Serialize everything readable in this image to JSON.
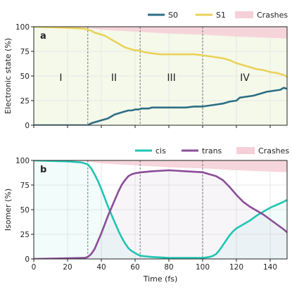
{
  "colors": {
    "S0": "#2d6e85",
    "S1": "#e9d25a",
    "cis": "#20c5b3",
    "trans": "#8a4d98",
    "crash_fill": "#f5d0d8",
    "axis": "#222222"
  },
  "chart_data": [
    {
      "type": "line",
      "panel": "a",
      "ylabel": "Electronic state (%)",
      "xlim": [
        0,
        150
      ],
      "ylim": [
        0,
        100
      ],
      "xticks": [
        "",
        "",
        "",
        "",
        "",
        "",
        "",
        ""
      ],
      "yticks": [
        "0",
        "25",
        "50",
        "75",
        "100"
      ],
      "grid": true,
      "legend_position": "top-right",
      "legend": [
        {
          "key": "S0",
          "label": "S0",
          "kind": "line"
        },
        {
          "key": "S1",
          "label": "S1",
          "kind": "line"
        },
        {
          "key": "crashes",
          "label": "Crashes",
          "kind": "area"
        }
      ],
      "regions": [
        {
          "label": "I",
          "x0": 0,
          "x1": 32
        },
        {
          "label": "II",
          "x0": 32,
          "x1": 63
        },
        {
          "label": "III",
          "x0": 63,
          "x1": 100
        },
        {
          "label": "IV",
          "x0": 100,
          "x1": 150
        }
      ],
      "vlines": [
        32,
        63,
        100
      ],
      "series": [
        {
          "name": "S0",
          "x": [
            0,
            31,
            32,
            33,
            34,
            36,
            38,
            40,
            42,
            44,
            46,
            48,
            50,
            52,
            54,
            56,
            58,
            60,
            62,
            64,
            66,
            68,
            70,
            75,
            80,
            85,
            90,
            95,
            100,
            104,
            108,
            112,
            116,
            120,
            122,
            126,
            130,
            134,
            138,
            142,
            146,
            148,
            150
          ],
          "y": [
            0,
            0,
            0,
            1,
            2,
            3,
            4,
            5,
            6,
            7,
            9,
            11,
            12,
            13,
            14,
            15,
            15,
            16,
            16,
            17,
            17,
            17,
            18,
            18,
            18,
            18,
            18,
            19,
            19,
            20,
            21,
            22,
            24,
            25,
            28,
            29,
            30,
            32,
            34,
            35,
            36,
            38,
            37
          ]
        },
        {
          "name": "S1",
          "x": [
            0,
            20,
            30,
            32,
            34,
            36,
            38,
            40,
            42,
            44,
            46,
            48,
            50,
            52,
            54,
            56,
            58,
            60,
            62,
            64,
            66,
            70,
            75,
            80,
            85,
            90,
            95,
            100,
            104,
            108,
            112,
            116,
            120,
            124,
            128,
            132,
            136,
            140,
            144,
            148,
            150
          ],
          "y": [
            100,
            99,
            98,
            97,
            96,
            94,
            93,
            92,
            91,
            89,
            87,
            85,
            83,
            81,
            79,
            78,
            77,
            76,
            76,
            75,
            74,
            73,
            72,
            72,
            72,
            72,
            72,
            71,
            70,
            69,
            68,
            66,
            63,
            61,
            59,
            57,
            56,
            54,
            53,
            51,
            49
          ]
        },
        {
          "name": "Crashes",
          "x": [
            0,
            30,
            40,
            60,
            80,
            100,
            120,
            150
          ],
          "y": [
            0,
            1,
            3,
            5,
            7,
            8,
            10,
            12
          ]
        }
      ]
    },
    {
      "type": "line",
      "panel": "b",
      "ylabel": "Isomer (%)",
      "xlabel": "Time (fs)",
      "xlim": [
        0,
        150
      ],
      "ylim": [
        0,
        100
      ],
      "xticks": [
        "0",
        "20",
        "40",
        "60",
        "80",
        "100",
        "120",
        "140"
      ],
      "yticks": [
        "0",
        "25",
        "50",
        "75",
        "100"
      ],
      "grid": true,
      "legend_position": "top-right",
      "legend": [
        {
          "key": "cis",
          "label": "cis",
          "kind": "line"
        },
        {
          "key": "trans",
          "label": "trans",
          "kind": "line"
        },
        {
          "key": "crashes",
          "label": "Crashes",
          "kind": "area"
        }
      ],
      "vlines": [
        32,
        63,
        100
      ],
      "series": [
        {
          "name": "cis",
          "x": [
            0,
            20,
            28,
            32,
            34,
            36,
            38,
            40,
            42,
            44,
            46,
            48,
            50,
            52,
            54,
            56,
            58,
            60,
            62,
            64,
            70,
            80,
            90,
            100,
            104,
            106,
            108,
            110,
            112,
            114,
            116,
            118,
            120,
            124,
            128,
            132,
            136,
            140,
            144,
            148,
            150
          ],
          "y": [
            100,
            99,
            98,
            96,
            92,
            86,
            79,
            71,
            62,
            53,
            45,
            37,
            29,
            22,
            16,
            11,
            8,
            6,
            4,
            3,
            2,
            1,
            1,
            1,
            2,
            3,
            5,
            9,
            14,
            19,
            24,
            28,
            31,
            35,
            39,
            44,
            48,
            52,
            55,
            58,
            60
          ]
        },
        {
          "name": "trans",
          "x": [
            0,
            30,
            32,
            34,
            36,
            38,
            40,
            42,
            44,
            46,
            48,
            50,
            52,
            54,
            56,
            58,
            60,
            64,
            70,
            80,
            90,
            100,
            104,
            108,
            112,
            116,
            120,
            124,
            128,
            132,
            136,
            140,
            144,
            148,
            150
          ],
          "y": [
            0,
            1,
            2,
            5,
            10,
            18,
            26,
            35,
            44,
            52,
            60,
            68,
            75,
            80,
            84,
            86,
            87,
            88,
            89,
            90,
            89,
            88,
            86,
            84,
            80,
            73,
            65,
            58,
            53,
            49,
            45,
            40,
            35,
            30,
            27
          ]
        },
        {
          "name": "Crashes",
          "x": [
            0,
            30,
            40,
            60,
            80,
            100,
            120,
            150
          ],
          "y": [
            0,
            1,
            3,
            5,
            7,
            8,
            10,
            12
          ]
        }
      ]
    }
  ]
}
